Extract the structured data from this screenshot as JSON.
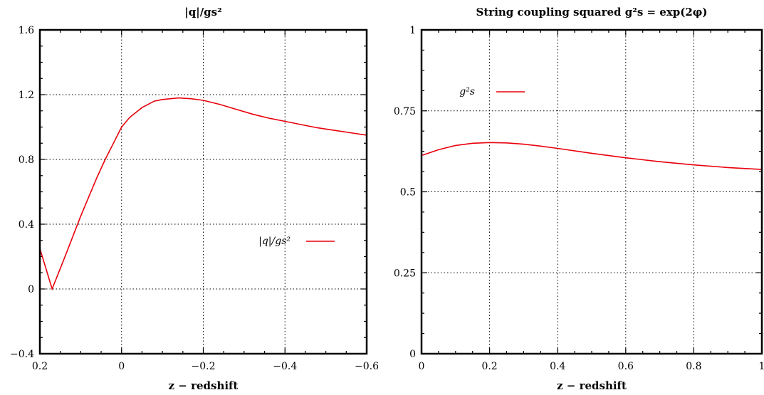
{
  "chart_data": [
    {
      "type": "line",
      "title": "|q|/gs²",
      "xlabel": "z − redshift",
      "ylabel": "",
      "xlim": [
        0.2,
        -0.6
      ],
      "ylim": [
        -0.4,
        1.6
      ],
      "xticks": [
        0.2,
        0,
        -0.2,
        -0.4,
        -0.6
      ],
      "xtick_labels": [
        "0.2",
        "0",
        "−0.2",
        "−0.4",
        "−0.6"
      ],
      "yticks": [
        -0.4,
        0,
        0.4,
        0.8,
        1.2,
        1.6
      ],
      "ytick_labels": [
        "−0.4",
        "0",
        "0.4",
        "0.8",
        "1.2",
        "1.6"
      ],
      "grid": true,
      "legend_position": "center-right",
      "series": [
        {
          "name": "|q|/gs²",
          "color": "#e8000b",
          "x": [
            0.2,
            0.17,
            0.14,
            0.12,
            0.1,
            0.08,
            0.06,
            0.04,
            0.02,
            0,
            -0.02,
            -0.05,
            -0.08,
            -0.1,
            -0.14,
            -0.17,
            -0.2,
            -0.24,
            -0.28,
            -0.32,
            -0.36,
            -0.4,
            -0.44,
            -0.48,
            -0.52,
            -0.56,
            -0.6
          ],
          "y": [
            0.25,
            0.0,
            0.19,
            0.32,
            0.45,
            0.57,
            0.69,
            0.8,
            0.9,
            1.0,
            1.06,
            1.12,
            1.16,
            1.17,
            1.18,
            1.175,
            1.165,
            1.14,
            1.11,
            1.08,
            1.055,
            1.035,
            1.015,
            0.995,
            0.98,
            0.965,
            0.95
          ]
        }
      ]
    },
    {
      "type": "line",
      "title": "String coupling squared g²s = exp(2φ)",
      "xlabel": "z − redshift",
      "ylabel": "",
      "xlim": [
        0,
        1
      ],
      "ylim": [
        0,
        1
      ],
      "xticks": [
        0,
        0.2,
        0.4,
        0.6,
        0.8,
        1
      ],
      "xtick_labels": [
        "0",
        "0.2",
        "0.4",
        "0.6",
        "0.8",
        "1"
      ],
      "yticks": [
        0,
        0.25,
        0.5,
        0.75,
        1
      ],
      "ytick_labels": [
        "0",
        "0.25",
        "0.5",
        "0.75",
        "1"
      ],
      "grid": true,
      "legend_position": "top-left",
      "series": [
        {
          "name": "g²s",
          "color": "#e8000b",
          "x": [
            0,
            0.05,
            0.1,
            0.15,
            0.2,
            0.25,
            0.3,
            0.35,
            0.4,
            0.5,
            0.6,
            0.7,
            0.8,
            0.9,
            1.0
          ],
          "y": [
            0.612,
            0.63,
            0.643,
            0.65,
            0.652,
            0.651,
            0.647,
            0.641,
            0.634,
            0.619,
            0.605,
            0.593,
            0.583,
            0.575,
            0.569
          ]
        }
      ]
    }
  ]
}
